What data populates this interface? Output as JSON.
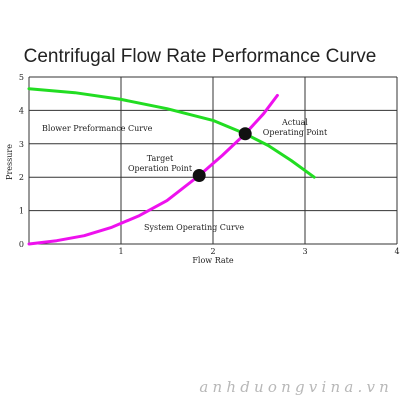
{
  "chart_data": {
    "type": "line",
    "title": "Centrifugal Flow Rate Performance Curve",
    "xlabel": "Flow Rate",
    "ylabel": "Pressure",
    "xlim": [
      0,
      4
    ],
    "ylim": [
      0,
      5
    ],
    "x_ticks": [
      "1",
      "2",
      "3",
      "4"
    ],
    "y_ticks": [
      "0",
      "1",
      "2",
      "3",
      "4",
      "5"
    ],
    "grid": true,
    "colors": {
      "blower": "#22dd22",
      "system": "#ee11ee",
      "point": "#111111",
      "grid": "#333333"
    },
    "series": [
      {
        "name": "Blower Preformance Curve",
        "x": [
          0,
          0.5,
          1.0,
          1.5,
          2.0,
          2.35,
          2.6,
          2.85,
          3.1
        ],
        "y": [
          4.65,
          4.53,
          4.33,
          4.05,
          3.7,
          3.3,
          2.95,
          2.5,
          2.0
        ]
      },
      {
        "name": "System Operating Curve",
        "x": [
          0,
          0.3,
          0.6,
          0.9,
          1.2,
          1.5,
          1.85,
          2.1,
          2.35,
          2.55,
          2.7
        ],
        "y": [
          0,
          0.1,
          0.25,
          0.5,
          0.85,
          1.3,
          2.05,
          2.65,
          3.3,
          3.9,
          4.45
        ]
      }
    ],
    "points": [
      {
        "name": "Target Operation Point",
        "x": 1.85,
        "y": 2.05
      },
      {
        "name": "Actual Operating Point",
        "x": 2.35,
        "y": 3.3
      }
    ],
    "annotations": {
      "blower": "Blower Preformance Curve",
      "system": "System Operating Curve",
      "target": [
        "Target",
        "Operation Point"
      ],
      "actual": [
        "Actual",
        "Operating Point"
      ]
    }
  },
  "watermark": "anhduongvina.vn"
}
